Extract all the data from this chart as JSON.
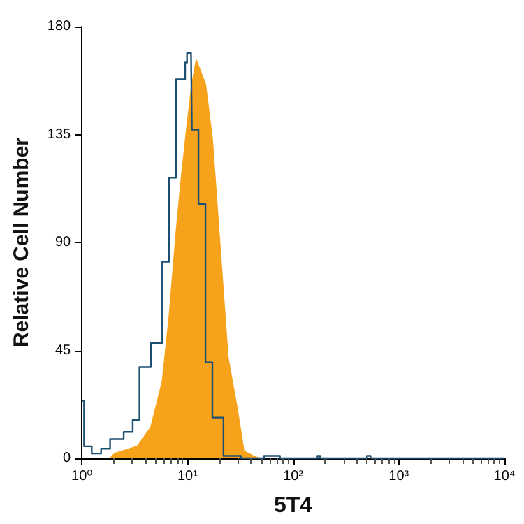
{
  "chart_data": {
    "type": "step",
    "xlabel": "5T4",
    "ylabel": "Relative Cell Number",
    "log": "x",
    "xlim": [
      1,
      10000
    ],
    "xticks": [
      {
        "value": 1,
        "label": "10⁰"
      },
      {
        "value": 10,
        "label": "10¹"
      },
      {
        "value": 100,
        "label": "10²"
      },
      {
        "value": 1000,
        "label": "10³"
      },
      {
        "value": 10000,
        "label": "10⁴"
      }
    ],
    "ylim": [
      0,
      180
    ],
    "yticks": [
      0,
      45,
      90,
      135,
      180
    ],
    "series": [
      {
        "type": "area",
        "color": "#f7a21b",
        "x": [
          1.85,
          2.04,
          3.35,
          4.5,
          5.77,
          6.7,
          7.8,
          8.6,
          9.9,
          11,
          12.1,
          14.8,
          17.2,
          19.9,
          24.2,
          29.5,
          34.2,
          41.8,
          47.5
        ],
        "values": [
          0,
          2,
          5,
          13,
          32,
          59,
          94,
          114,
          139,
          156,
          166,
          156,
          133,
          94,
          42,
          21,
          3,
          1,
          0
        ]
      },
      {
        "color": "#1d4f73",
        "x": [
          1,
          1.02,
          1.05,
          1.24,
          1.52,
          1.85,
          2.49,
          3.03,
          3.51,
          4.5,
          5.77,
          6.7,
          7.8,
          9.5,
          9.9,
          10.8,
          11,
          12.7,
          14.8,
          17.2,
          21.9,
          32,
          53,
          60,
          75,
          170,
          180,
          500,
          540,
          10000
        ],
        "values": [
          24,
          24,
          5,
          2,
          4,
          8,
          11,
          16,
          38,
          48,
          82,
          117,
          158,
          165,
          169,
          169,
          137,
          106,
          40,
          17,
          1,
          0,
          1,
          1,
          0,
          1,
          0,
          1,
          0,
          0
        ]
      }
    ],
    "grid": false
  }
}
